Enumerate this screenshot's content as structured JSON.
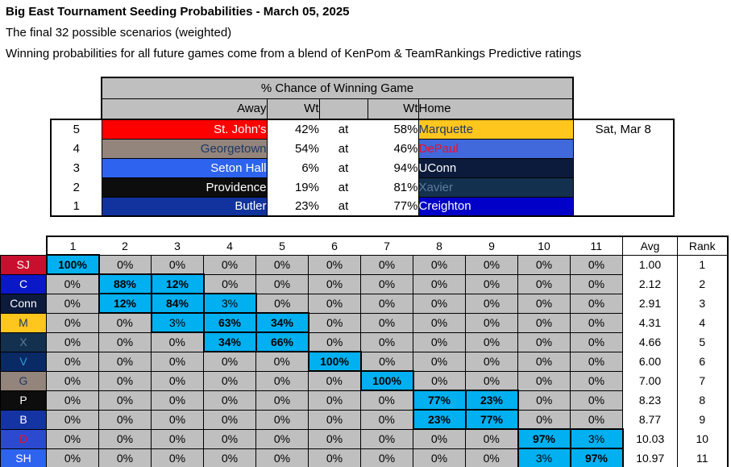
{
  "header": {
    "title": "Big East Tournament Seeding Probabilities - March 05, 2025",
    "subtitle1": "The final 32 possible scenarios (weighted)",
    "subtitle2": "Winning probabilities for all future games come from a blend of KenPom & TeamRankings Predictive ratings"
  },
  "games_table": {
    "header_title": "% Chance of Winning Game",
    "col_away": "Away",
    "col_wt_away": "Wt",
    "col_wt_home": "Wt",
    "col_home": "Home",
    "at_label": "at",
    "rows": [
      {
        "seed": "5",
        "away": "St. John's",
        "away_bg": "#FF0000",
        "away_fg": "#FFFFFF",
        "wt_away": "42%",
        "wt_home": "58%",
        "home": "Marquette",
        "home_bg": "#FFC61E",
        "home_fg": "#1F3864",
        "date": "Sat, Mar 8"
      },
      {
        "seed": "4",
        "away": "Georgetown",
        "away_bg": "#93847C",
        "away_fg": "#1F3864",
        "wt_away": "54%",
        "wt_home": "46%",
        "home": "DePaul",
        "home_bg": "#4169DC",
        "home_fg": "#E8112D",
        "date": ""
      },
      {
        "seed": "3",
        "away": "Seton Hall",
        "away_bg": "#2E63F0",
        "away_fg": "#FFFFFF",
        "wt_away": "6%",
        "wt_home": "94%",
        "home": "UConn",
        "home_bg": "#0C1B3C",
        "home_fg": "#FFFFFF",
        "date": ""
      },
      {
        "seed": "2",
        "away": "Providence",
        "away_bg": "#0D0D0D",
        "away_fg": "#FFFFFF",
        "wt_away": "19%",
        "wt_home": "81%",
        "home": "Xavier",
        "home_bg": "#14304F",
        "home_fg": "#5B7C9E",
        "date": ""
      },
      {
        "seed": "1",
        "away": "Butler",
        "away_bg": "#12339E",
        "away_fg": "#FFFFFF",
        "wt_away": "23%",
        "wt_home": "77%",
        "home": "Creighton",
        "home_bg": "#0000C8",
        "home_fg": "#FFFFFF",
        "date": ""
      }
    ]
  },
  "matrix": {
    "seed_headers": [
      "1",
      "2",
      "3",
      "4",
      "5",
      "6",
      "7",
      "8",
      "9",
      "10",
      "11"
    ],
    "avg_header": "Avg",
    "rank_header": "Rank",
    "rows": [
      {
        "team": "SJ",
        "bg": "#C8102E",
        "fg": "#FFFFFF",
        "cells": [
          "100%",
          "0%",
          "0%",
          "0%",
          "0%",
          "0%",
          "0%",
          "0%",
          "0%",
          "0%",
          "0%"
        ],
        "avg": "1.00",
        "rank": "1"
      },
      {
        "team": "C",
        "bg": "#0A18C8",
        "fg": "#FFFFFF",
        "cells": [
          "0%",
          "88%",
          "12%",
          "0%",
          "0%",
          "0%",
          "0%",
          "0%",
          "0%",
          "0%",
          "0%"
        ],
        "avg": "2.12",
        "rank": "2"
      },
      {
        "team": "Conn",
        "bg": "#0C1B3C",
        "fg": "#FFFFFF",
        "cells": [
          "0%",
          "12%",
          "84%",
          "3%",
          "0%",
          "0%",
          "0%",
          "0%",
          "0%",
          "0%",
          "0%"
        ],
        "avg": "2.91",
        "rank": "3"
      },
      {
        "team": "M",
        "bg": "#FFC61E",
        "fg": "#1F3864",
        "cells": [
          "0%",
          "0%",
          "3%",
          "63%",
          "34%",
          "0%",
          "0%",
          "0%",
          "0%",
          "0%",
          "0%"
        ],
        "avg": "4.31",
        "rank": "4"
      },
      {
        "team": "X",
        "bg": "#14304F",
        "fg": "#5B7C9E",
        "cells": [
          "0%",
          "0%",
          "0%",
          "34%",
          "66%",
          "0%",
          "0%",
          "0%",
          "0%",
          "0%",
          "0%"
        ],
        "avg": "4.66",
        "rank": "5"
      },
      {
        "team": "V",
        "bg": "#0A2A66",
        "fg": "#2E9BD6",
        "cells": [
          "0%",
          "0%",
          "0%",
          "0%",
          "0%",
          "100%",
          "0%",
          "0%",
          "0%",
          "0%",
          "0%"
        ],
        "avg": "6.00",
        "rank": "6"
      },
      {
        "team": "G",
        "bg": "#93847C",
        "fg": "#1F3864",
        "cells": [
          "0%",
          "0%",
          "0%",
          "0%",
          "0%",
          "0%",
          "100%",
          "0%",
          "0%",
          "0%",
          "0%"
        ],
        "avg": "7.00",
        "rank": "7"
      },
      {
        "team": "P",
        "bg": "#0D0D0D",
        "fg": "#FFFFFF",
        "cells": [
          "0%",
          "0%",
          "0%",
          "0%",
          "0%",
          "0%",
          "0%",
          "77%",
          "23%",
          "0%",
          "0%"
        ],
        "avg": "8.23",
        "rank": "8"
      },
      {
        "team": "B",
        "bg": "#1434A4",
        "fg": "#FFFFFF",
        "cells": [
          "0%",
          "0%",
          "0%",
          "0%",
          "0%",
          "0%",
          "0%",
          "23%",
          "77%",
          "0%",
          "0%"
        ],
        "avg": "8.77",
        "rank": "9"
      },
      {
        "team": "D",
        "bg": "#2C4AD0",
        "fg": "#E8112D",
        "cells": [
          "0%",
          "0%",
          "0%",
          "0%",
          "0%",
          "0%",
          "0%",
          "0%",
          "0%",
          "97%",
          "3%"
        ],
        "avg": "10.03",
        "rank": "10"
      },
      {
        "team": "SH",
        "bg": "#2E63F0",
        "fg": "#FFFFFF",
        "cells": [
          "0%",
          "0%",
          "0%",
          "0%",
          "0%",
          "0%",
          "0%",
          "0%",
          "0%",
          "3%",
          "97%"
        ],
        "avg": "10.97",
        "rank": "11"
      }
    ]
  },
  "theme": {
    "grid_gray": "#BFBFBF",
    "highlight_cyan": "#00B0F0",
    "border_black": "#000000"
  }
}
